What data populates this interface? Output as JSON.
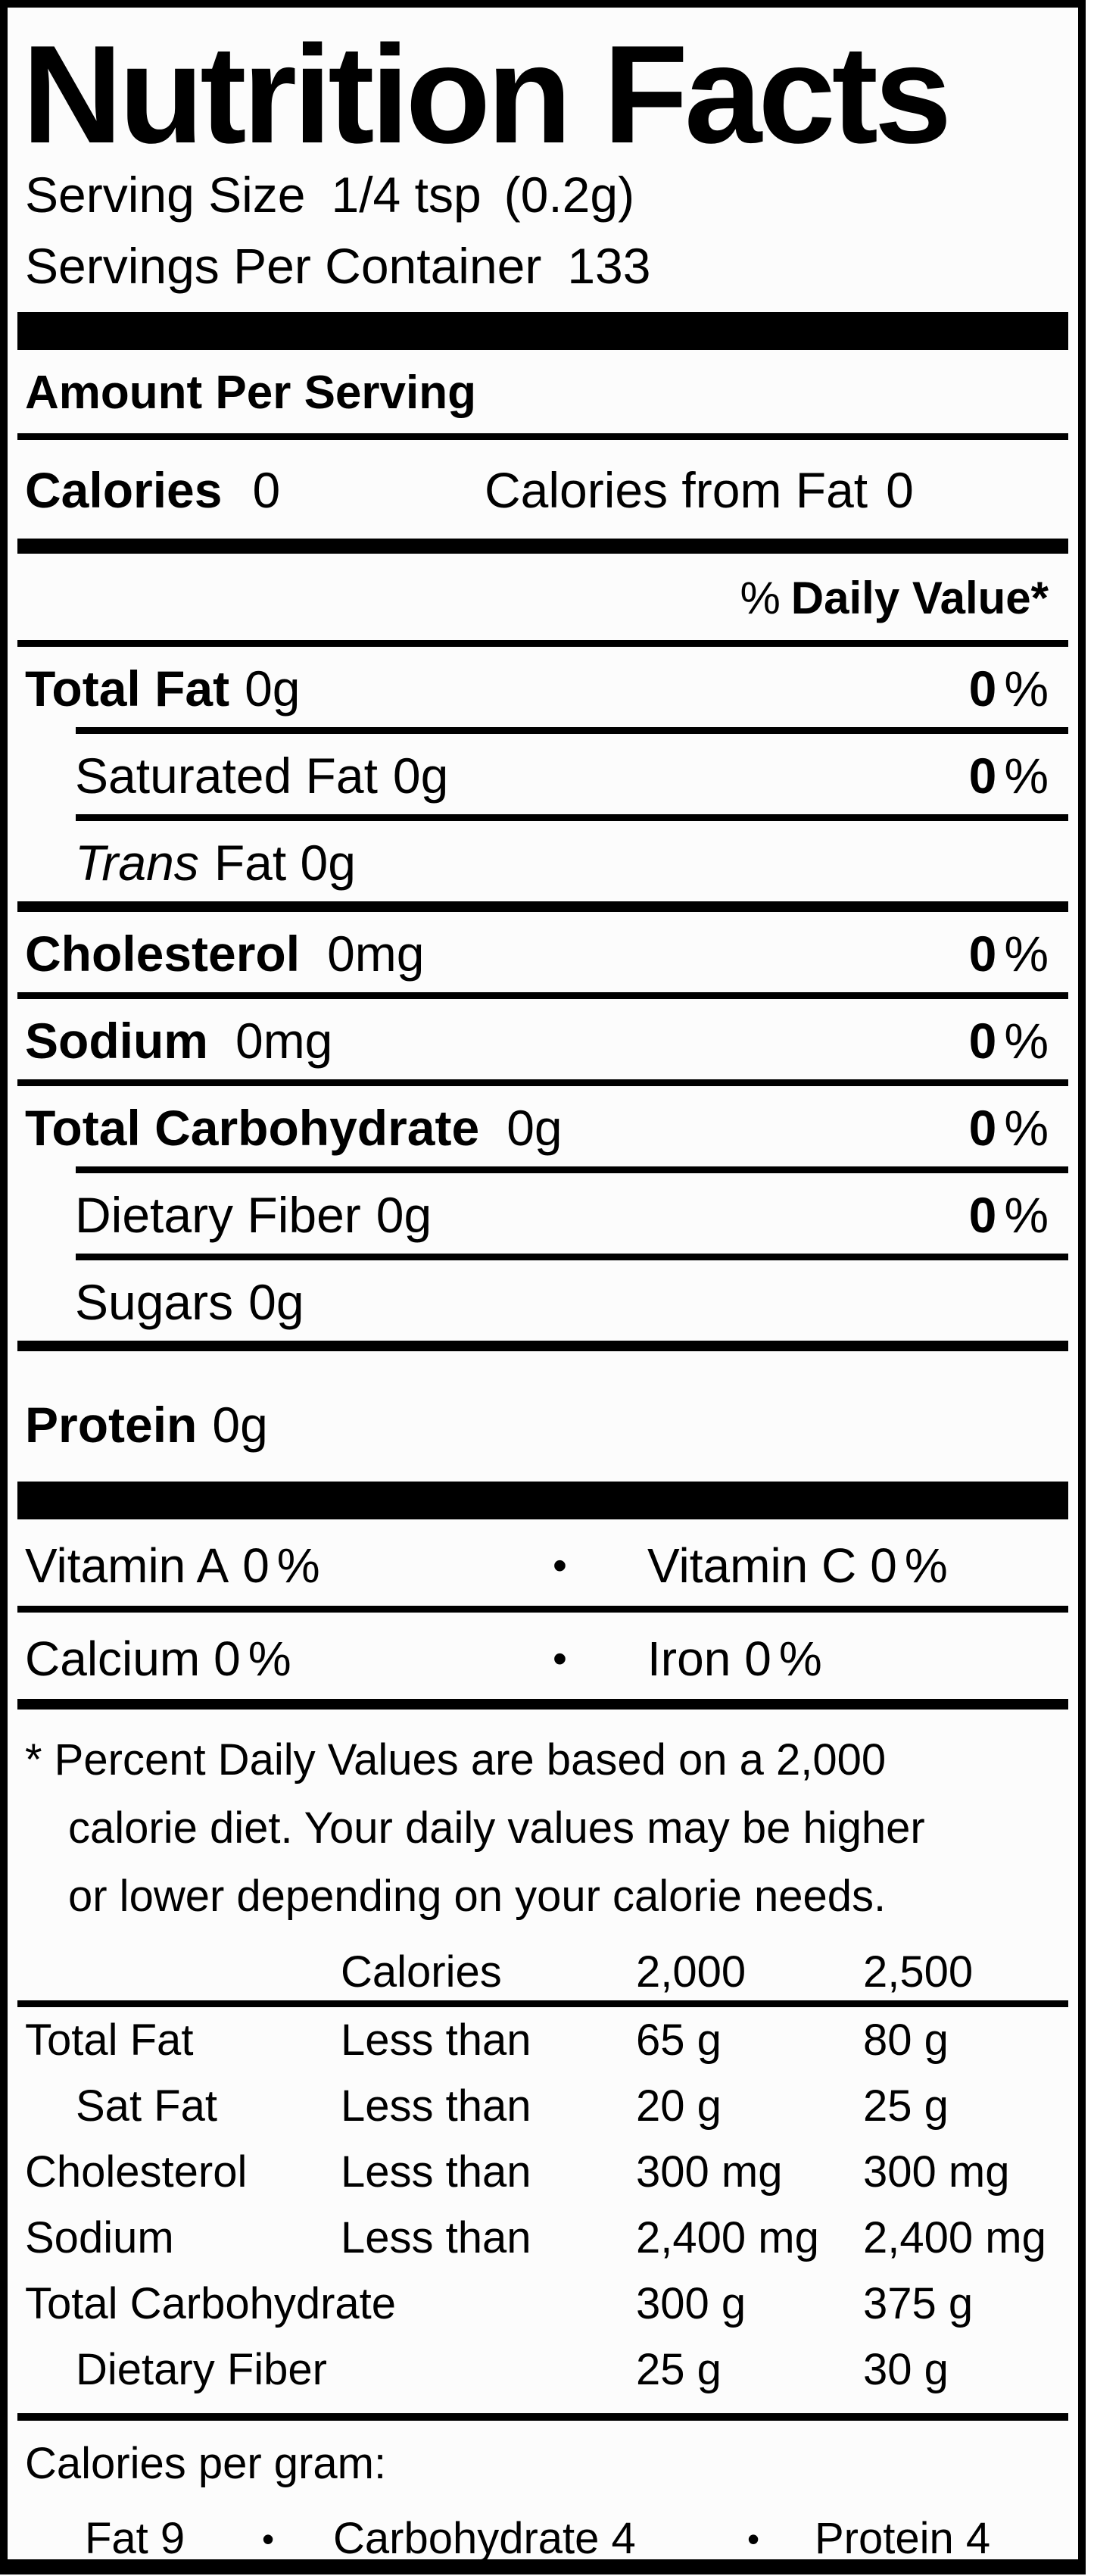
{
  "percent": "%",
  "bullet": "•",
  "header": {
    "title": "Nutrition Facts",
    "serving_size_label": "Serving Size",
    "serving_size_qty": "1/4 tsp",
    "serving_size_weight": "(0.2g)",
    "servings_per_container_label": "Servings Per Container",
    "servings_per_container_value": "133"
  },
  "amount_per_serving": "Amount Per Serving",
  "calories": {
    "label": "Calories",
    "value": "0",
    "from_fat_label": "Calories from Fat",
    "from_fat_value": "0"
  },
  "daily_value_header": {
    "pct": "%",
    "text": "Daily Value*"
  },
  "nutrients": [
    {
      "name": "Total Fat",
      "amount": "0g",
      "dv": "0"
    },
    {
      "name": "Saturated Fat",
      "amount": "0g",
      "dv": "0"
    },
    {
      "name": "Trans",
      "amount": "Fat 0g"
    },
    {
      "name": "Cholesterol",
      "amount": "0mg",
      "dv": "0"
    },
    {
      "name": "Sodium",
      "amount": "0mg",
      "dv": "0"
    },
    {
      "name": "Total Carbohydrate",
      "amount": "0g",
      "dv": "0"
    },
    {
      "name": "Dietary Fiber",
      "amount": "0g",
      "dv": "0"
    },
    {
      "name": "Sugars",
      "amount": "0g"
    },
    {
      "name": "Protein",
      "amount": "0g"
    }
  ],
  "vitamins": [
    {
      "left_name": "Vitamin A",
      "left_value": "0",
      "right_name": "Vitamin C",
      "right_value": "0"
    },
    {
      "left_name": "Calcium",
      "left_value": "0",
      "right_name": "Iron",
      "right_value": "0"
    }
  ],
  "footnote_lines": [
    "* Percent Daily Values are based on a 2,000",
    "calorie diet. Your daily values may be higher",
    "or lower depending on your calorie needs."
  ],
  "dv_table": {
    "header": {
      "c1": "Calories",
      "c2": "2,000",
      "c3": "2,500"
    },
    "rows": [
      {
        "label": "Total Fat",
        "cond": "Less than",
        "v2000": "65 g",
        "v2500": "80 g"
      },
      {
        "label": "Sat Fat",
        "cond": "Less than",
        "v2000": "20 g",
        "v2500": "25 g"
      },
      {
        "label": "Cholesterol",
        "cond": "Less than",
        "v2000": "300 mg",
        "v2500": "300 mg"
      },
      {
        "label": "Sodium",
        "cond": "Less than",
        "v2000": "2,400 mg",
        "v2500": "2,400 mg"
      },
      {
        "label": "Total Carbohydrate",
        "cond": "",
        "v2000": "300 g",
        "v2500": "375 g"
      },
      {
        "label": "Dietary Fiber",
        "cond": "",
        "v2000": "25 g",
        "v2500": "30 g"
      }
    ]
  },
  "calories_per_gram": {
    "label": "Calories per gram:",
    "items": [
      "Fat 9",
      "Carbohydrate 4",
      "Protein 4"
    ]
  }
}
